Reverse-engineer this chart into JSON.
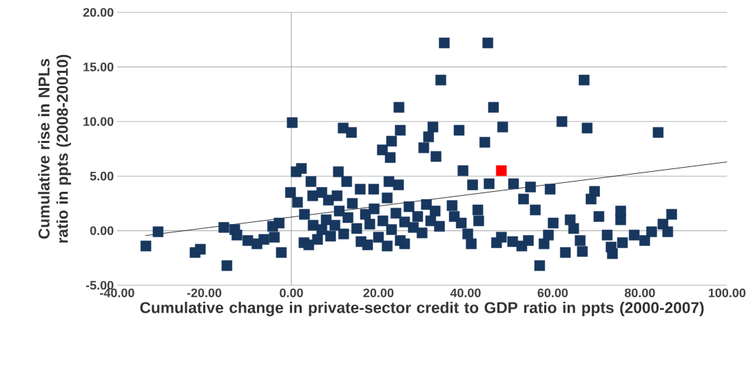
{
  "chart_data": {
    "type": "scatter",
    "xlabel": "Cumulative change in private-sector credit to GDP ratio in ppts  (2000-2007)",
    "ylabel": "Cumulative rise in NPLs ratio in ppts (2008-20010)",
    "xlim": [
      -40,
      100
    ],
    "ylim": [
      -5,
      20
    ],
    "xticks": [
      {
        "value": -40,
        "label": "-40.00"
      },
      {
        "value": -20,
        "label": "-20.00"
      },
      {
        "value": 0,
        "label": "0.00"
      },
      {
        "value": 20,
        "label": "20.00"
      },
      {
        "value": 40,
        "label": "40.00"
      },
      {
        "value": 60,
        "label": "60.00"
      },
      {
        "value": 80,
        "label": "80.00"
      },
      {
        "value": 100,
        "label": "100.00"
      }
    ],
    "yticks": [
      {
        "value": -5,
        "label": "-5.00"
      },
      {
        "value": 0,
        "label": "0.00"
      },
      {
        "value": 5,
        "label": "5.00"
      },
      {
        "value": 10,
        "label": "10.00"
      },
      {
        "value": 15,
        "label": "15.00"
      },
      {
        "value": 20,
        "label": "20.00"
      }
    ],
    "grid": "y",
    "marker": "square",
    "series": [
      {
        "color": "#17375e",
        "x": [
          35.1,
          45.1,
          34.3,
          67.2,
          24.7,
          46.4,
          0.2,
          11.9,
          13.8,
          25,
          23,
          20.9,
          22.7,
          32.5,
          31.5,
          30.4,
          33.2,
          38.5,
          44.4,
          48.5,
          62.1,
          67.9,
          84.2,
          10.8,
          2.3,
          39.4,
          4.5,
          12.7,
          22.4,
          24.6,
          41.6,
          45.4,
          15.8,
          18.9,
          7,
          36.9,
          37.4,
          39,
          40.5,
          41.3,
          42.8,
          43,
          51,
          54.9,
          53.3,
          56,
          60.1,
          59,
          64.8,
          66.3,
          66.8,
          69.6,
          68.8,
          70.6,
          75.6,
          75.6,
          87.3,
          85.3,
          86.4,
          72.5,
          73.4,
          76,
          78.7,
          81.1,
          82.7,
          73.7,
          57,
          58,
          62.9,
          48.2,
          50.8,
          52.9,
          54.4,
          47.1,
          59.4,
          64,
          -30.6,
          -33.4,
          -22.1,
          -20.9,
          -14.8,
          -15.5,
          -12.5,
          -10,
          -7.9,
          -6.3,
          -3.9,
          -4.3,
          -2.3,
          1.1,
          -0.2,
          4.9,
          1.4,
          2.9,
          -2.8,
          -13,
          3,
          5,
          6,
          8,
          8.5,
          9,
          10,
          11,
          12,
          13,
          14,
          15,
          16,
          17,
          18,
          19,
          20,
          21,
          22,
          23,
          24,
          25,
          26,
          27,
          28,
          29,
          30,
          31,
          32,
          33,
          34,
          7,
          10.5,
          4,
          17.5,
          26,
          22
        ],
        "values": [
          17.2,
          17.2,
          13.8,
          13.8,
          11.3,
          11.3,
          9.9,
          9.4,
          9,
          9.2,
          8.2,
          7.4,
          6.7,
          9.5,
          8.6,
          7.6,
          6.8,
          9.2,
          8.1,
          9.5,
          10,
          9.4,
          9,
          5.4,
          5.7,
          5.5,
          4.5,
          4.5,
          4.5,
          4.2,
          4.2,
          4.3,
          3.8,
          3.8,
          3.5,
          2.3,
          1.3,
          0.7,
          -0.3,
          -1.2,
          1.9,
          0.9,
          4.3,
          4,
          2.9,
          1.9,
          0.7,
          -0.4,
          0.2,
          -0.9,
          -1.9,
          3.6,
          2.9,
          1.3,
          1,
          1.8,
          1.5,
          0.6,
          -0.1,
          -0.4,
          -1.5,
          -1.1,
          -0.4,
          -0.9,
          -0.1,
          -2.1,
          -3.2,
          -1.2,
          -2,
          -0.6,
          -1,
          -1.4,
          -0.9,
          -1.1,
          3.8,
          1,
          -0.1,
          -1.4,
          -2,
          -1.7,
          -3.2,
          0.3,
          -0.4,
          -0.9,
          -1.2,
          -0.8,
          -0.6,
          0.4,
          -2,
          5.4,
          3.5,
          3.2,
          2.6,
          -1.1,
          0.7,
          0.1,
          1.5,
          0.5,
          -0.8,
          1,
          2.8,
          -0.5,
          0.5,
          1.8,
          -0.3,
          1.2,
          2.5,
          0.2,
          -1,
          1.5,
          0.6,
          2,
          -0.6,
          0.9,
          3,
          0.1,
          1.6,
          -0.9,
          0.8,
          2.2,
          0.3,
          1.3,
          -0.2,
          2.4,
          0.9,
          1.8,
          0.4,
          0.1,
          3.2,
          -1.3,
          -1.3,
          -1.2,
          -1.4
        ]
      },
      {
        "color": "#ff0000",
        "x": [
          48.2
        ],
        "values": [
          5.5
        ]
      },
      {
        "type": "line",
        "marker": "none",
        "color": "#000000",
        "x": [
          -33.5,
          100
        ],
        "values": [
          -0.45,
          6.3
        ]
      }
    ]
  }
}
